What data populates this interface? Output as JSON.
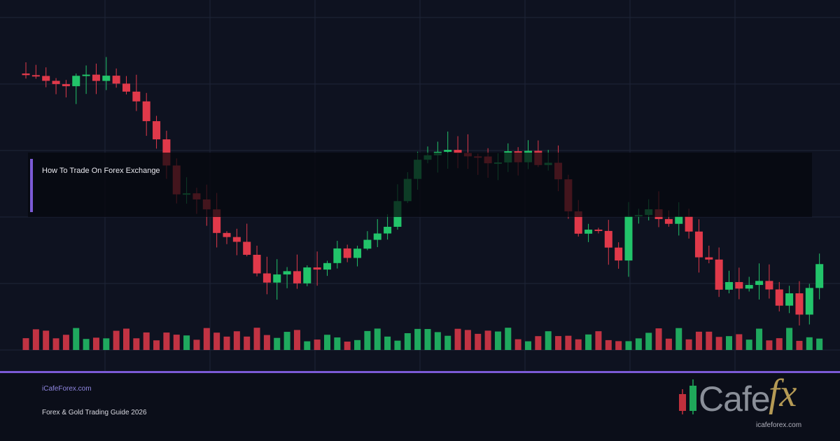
{
  "header": {
    "title": "How To Trade On Forex Exchange"
  },
  "footer": {
    "site": "iCafeForex.com",
    "tagline": "Forex & Gold Trading Guide 2026"
  },
  "logo": {
    "word": "Cafe",
    "mark": "fx",
    "url": "icafeforex.com"
  }
}
